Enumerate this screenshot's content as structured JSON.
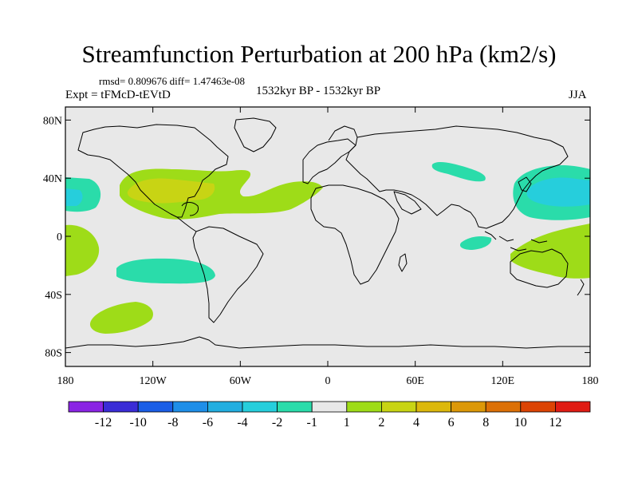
{
  "header": {
    "title": "Streamfunction Perturbation at 200 hPa (km2/s)",
    "stats": "rmsd= 0.809676 diff= 1.47463e-08",
    "experiment": "Expt = tFMcD-tEVtD",
    "period": "1532kyr BP - 1532kyr BP",
    "season": "JJA"
  },
  "map": {
    "background_color": "#e8e8e8",
    "coastline_color": "#000000",
    "lat_ticks": [
      {
        "value": 80,
        "label": "80N"
      },
      {
        "value": 40,
        "label": "40N"
      },
      {
        "value": 0,
        "label": "0"
      },
      {
        "value": -40,
        "label": "40S"
      },
      {
        "value": -80,
        "label": "80S"
      }
    ],
    "lon_ticks": [
      {
        "value": -180,
        "label": "180"
      },
      {
        "value": -120,
        "label": "120W"
      },
      {
        "value": -60,
        "label": "60W"
      },
      {
        "value": 0,
        "label": "0"
      },
      {
        "value": 60,
        "label": "60E"
      },
      {
        "value": 120,
        "label": "120E"
      },
      {
        "value": 180,
        "label": "180"
      }
    ]
  },
  "colorbar": {
    "colors": [
      "#8a24e4",
      "#3a2cd6",
      "#1a5ee6",
      "#1e8ee8",
      "#22aee0",
      "#26cedc",
      "#2adcaa",
      "#e8e8e8",
      "#9edc18",
      "#c8d414",
      "#dcb80c",
      "#dc9808",
      "#dc7006",
      "#dc4404",
      "#e01c14"
    ],
    "labels": [
      "-12",
      "-10",
      "-8",
      "-6",
      "-4",
      "-2",
      "-1",
      "1",
      "2",
      "4",
      "6",
      "8",
      "10",
      "12"
    ]
  }
}
